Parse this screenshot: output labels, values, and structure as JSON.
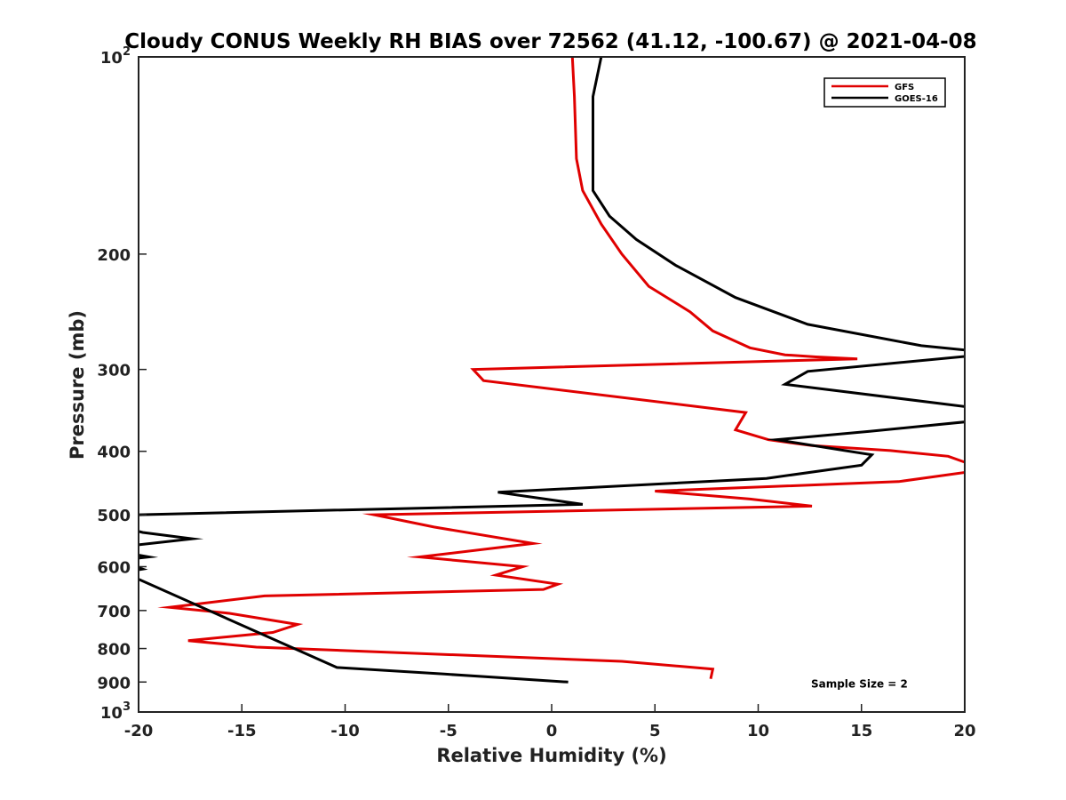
{
  "chart_data": {
    "type": "line",
    "title": "Cloudy CONUS Weekly RH BIAS over 72562 (41.12, -100.67) @ 2021-04-08",
    "xlabel": "Relative Humidity (%)",
    "ylabel": "Pressure (mb)",
    "xlim": [
      -20,
      20
    ],
    "ylim": [
      100,
      1000
    ],
    "y_scale": "log",
    "y_reversed": true,
    "grid": false,
    "legend_position": "top-right",
    "x_ticks": [
      {
        "value": -20,
        "label": "-20"
      },
      {
        "value": -15,
        "label": "-15"
      },
      {
        "value": -10,
        "label": "-10"
      },
      {
        "value": -5,
        "label": "-5"
      },
      {
        "value": 0,
        "label": "0"
      },
      {
        "value": 5,
        "label": "5"
      },
      {
        "value": 10,
        "label": "10"
      },
      {
        "value": 15,
        "label": "15"
      },
      {
        "value": 20,
        "label": "20"
      }
    ],
    "y_ticks": [
      {
        "value": 100,
        "base": "10",
        "exp": "2"
      },
      {
        "value": 200,
        "label": "200"
      },
      {
        "value": 300,
        "label": "300"
      },
      {
        "value": 400,
        "label": "400"
      },
      {
        "value": 500,
        "label": "500"
      },
      {
        "value": 600,
        "label": "600"
      },
      {
        "value": 700,
        "label": "700"
      },
      {
        "value": 800,
        "label": "800"
      },
      {
        "value": 900,
        "label": "900"
      },
      {
        "value": 1000,
        "base": "10",
        "exp": "3"
      }
    ],
    "series": [
      {
        "name": "GFS",
        "color": "#e00000",
        "x": [
          1.0,
          1.1,
          1.2,
          1.5,
          2.4,
          3.4,
          4.7,
          6.7,
          7.8,
          9.6,
          11.3,
          12.8,
          14.8,
          -3.8,
          -3.3,
          9.4,
          8.9,
          10.5,
          12.6,
          16.4,
          19.2,
          20.4,
          20.2,
          16.8,
          5.0,
          9.6,
          12.6,
          -8.6,
          -5.7,
          -0.9,
          -6.4,
          -1.4,
          -2.7,
          0.3,
          -0.4,
          -13.9,
          -18.5,
          -15.6,
          -12.3,
          -13.5,
          -17.6,
          -14.3,
          3.4,
          7.8,
          7.7
        ],
        "y": [
          100,
          115,
          143,
          160,
          180,
          200,
          224,
          245,
          262,
          278,
          285,
          287,
          289,
          300,
          312,
          349,
          371,
          384,
          392,
          399,
          407,
          420,
          430,
          445,
          460,
          473,
          485,
          500,
          522,
          553,
          580,
          600,
          618,
          638,
          650,
          665,
          692,
          707,
          735,
          756,
          778,
          796,
          837,
          860,
          890
        ]
      },
      {
        "name": "GOES-16",
        "color": "#000000",
        "x": [
          2.4,
          2.0,
          2.0,
          2.0,
          2.8,
          4.1,
          6.0,
          8.9,
          12.4,
          17.9,
          20.4,
          20.3,
          12.4,
          11.3,
          20.4,
          20.3,
          15.4,
          10.9,
          15.5,
          15.0,
          10.4,
          -2.6,
          1.5,
          -20.0,
          -21.0,
          -19.8,
          -17.4,
          -20.1,
          -21.0,
          -19.5,
          -21.0,
          -19.8,
          -21.0,
          -20.1,
          -10.4,
          -5.2,
          0.8
        ],
        "y": [
          100,
          115,
          143,
          160,
          175,
          190,
          208,
          233,
          256,
          276,
          281,
          286,
          302,
          316,
          343,
          360,
          373,
          384,
          405,
          420,
          440,
          462,
          482,
          500,
          520,
          532,
          544,
          556,
          569,
          580,
          587,
          605,
          614,
          625,
          855,
          875,
          900
        ]
      }
    ],
    "annotations": [
      {
        "text": "Sample Size = 2",
        "x": 14.9,
        "y": 900
      }
    ]
  }
}
